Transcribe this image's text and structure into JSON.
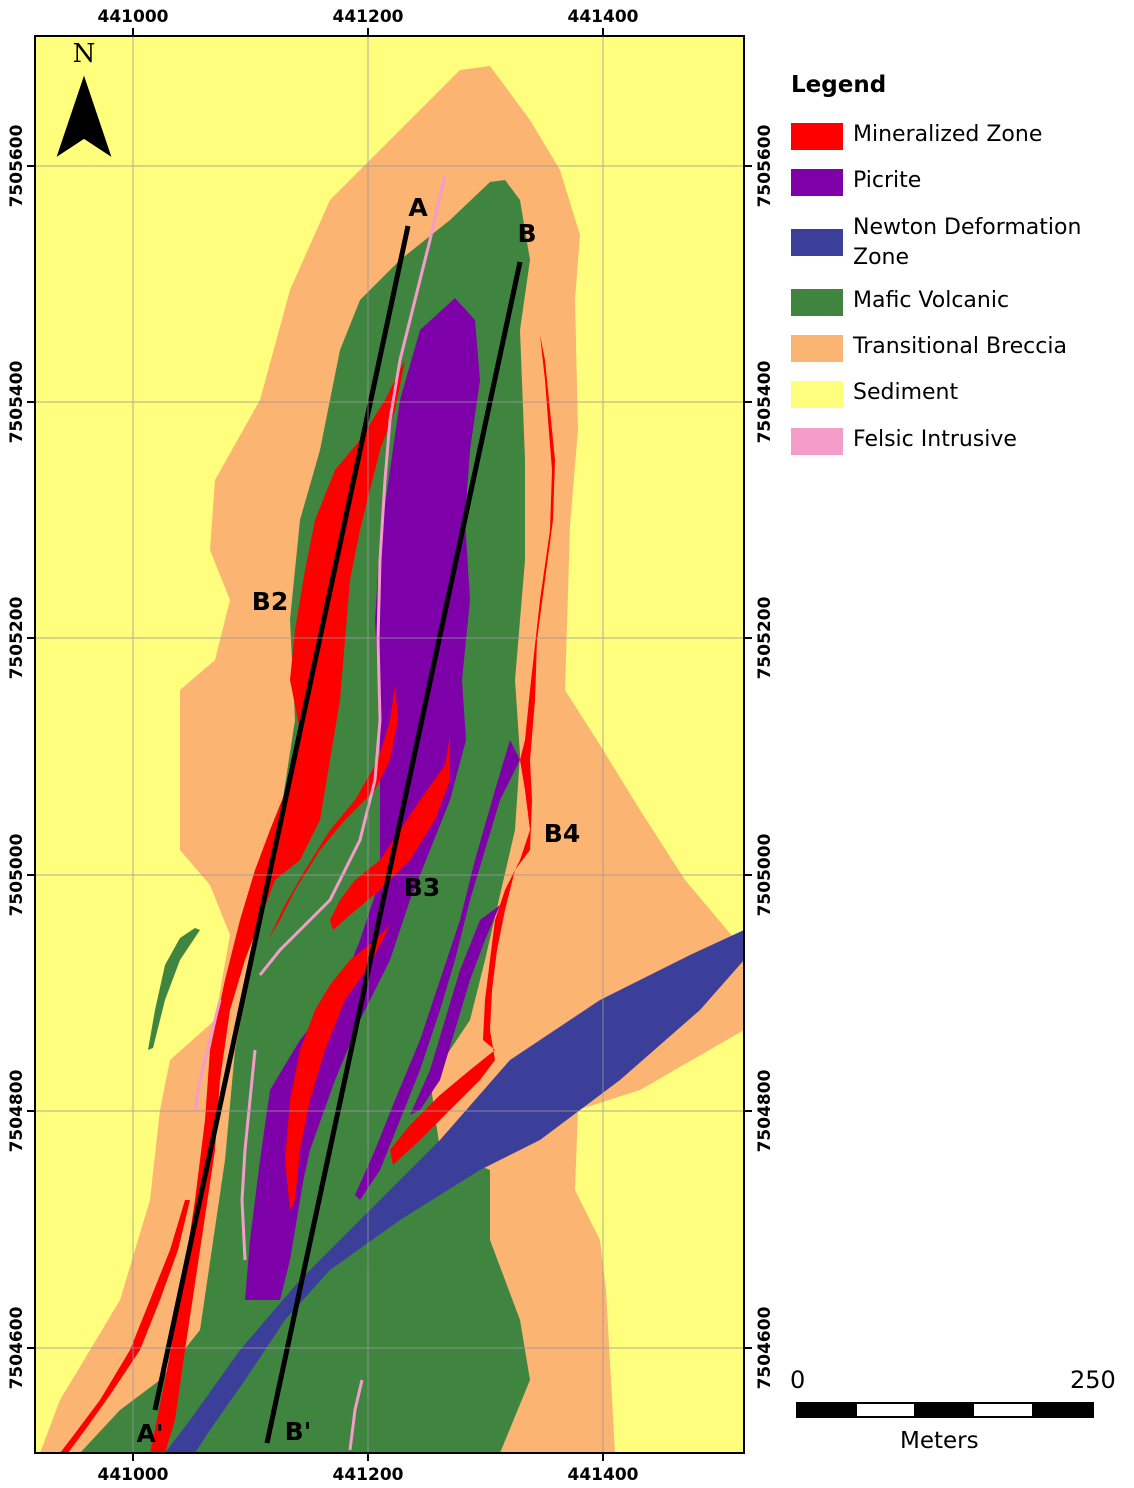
{
  "map": {
    "north_label": "N",
    "x_ticks": [
      "441000",
      "441200",
      "441400"
    ],
    "y_ticks": [
      "7505600",
      "7505400",
      "7505200",
      "7505000",
      "7504800",
      "7504600"
    ],
    "section_labels": [
      "A",
      "A'",
      "B",
      "B'"
    ],
    "zone_labels": [
      "B2",
      "B3",
      "B4"
    ]
  },
  "legend": {
    "title": "Legend",
    "items": [
      {
        "label": "Mineralized Zone",
        "color": "#ff0000"
      },
      {
        "label": "Picrite",
        "color": "#7e00a8"
      },
      {
        "label": "Newton Deformation Zone",
        "color": "#3c3f9a"
      },
      {
        "label": "Mafic Volcanic",
        "color": "#3f8540"
      },
      {
        "label": "Transitional Breccia",
        "color": "#fbb472"
      },
      {
        "label": "Sediment",
        "color": "#ffff7d"
      },
      {
        "label": "Felsic Intrusive",
        "color": "#f49dcb"
      }
    ]
  },
  "scale_bar": {
    "start": "0",
    "end": "250",
    "unit": "Meters"
  }
}
